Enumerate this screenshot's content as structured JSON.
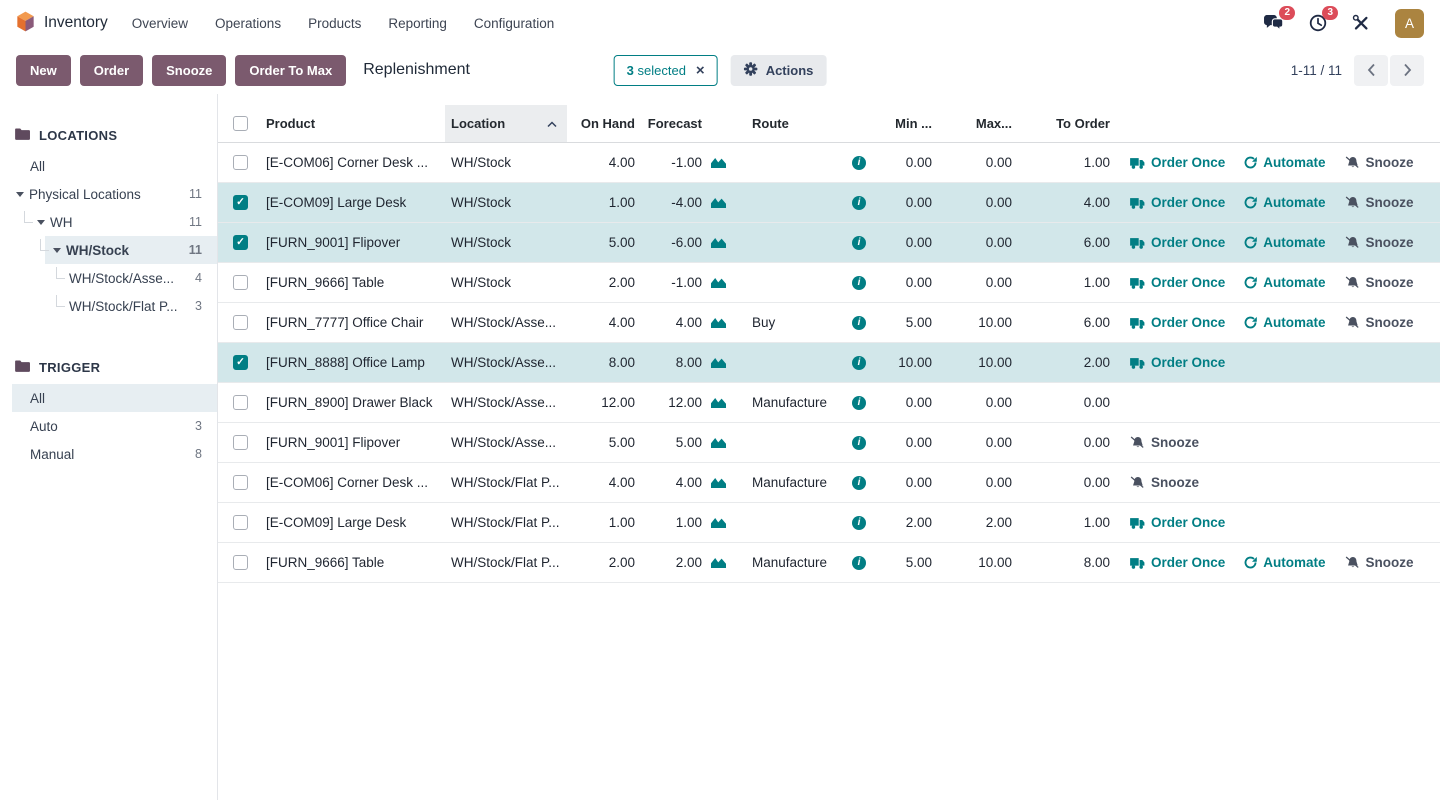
{
  "nav": {
    "brand": "Inventory",
    "items": [
      "Overview",
      "Operations",
      "Products",
      "Reporting",
      "Configuration"
    ],
    "badges": {
      "messages": "2",
      "activities": "3"
    },
    "avatar_letter": "A"
  },
  "control_panel": {
    "buttons": {
      "new": "New",
      "order": "Order",
      "snooze": "Snooze",
      "order_to_max": "Order To Max"
    },
    "breadcrumb": "Replenishment",
    "selection": {
      "count": "3",
      "label": "selected"
    },
    "actions_label": "Actions",
    "pager": {
      "range": "1-11 / 11"
    }
  },
  "sidebar": {
    "locations": {
      "title": "LOCATIONS",
      "items": [
        {
          "label": "All",
          "count": "",
          "depth": 0,
          "caret": false,
          "selected": false
        },
        {
          "label": "Physical Locations",
          "count": "11",
          "depth": 0,
          "caret": true,
          "selected": false
        },
        {
          "label": "WH",
          "count": "11",
          "depth": 1,
          "caret": true,
          "selected": false
        },
        {
          "label": "WH/Stock",
          "count": "11",
          "depth": 2,
          "caret": true,
          "selected": true
        },
        {
          "label": "WH/Stock/Asse...",
          "count": "4",
          "depth": 3,
          "caret": false,
          "selected": false
        },
        {
          "label": "WH/Stock/Flat P...",
          "count": "3",
          "depth": 3,
          "caret": false,
          "selected": false
        }
      ]
    },
    "trigger": {
      "title": "TRIGGER",
      "items": [
        {
          "label": "All",
          "count": "",
          "depth": 0,
          "caret": false,
          "selected": true
        },
        {
          "label": "Auto",
          "count": "3",
          "depth": 0,
          "caret": false,
          "selected": false
        },
        {
          "label": "Manual",
          "count": "8",
          "depth": 0,
          "caret": false,
          "selected": false
        }
      ]
    }
  },
  "table": {
    "headers": {
      "product": "Product",
      "location": "Location",
      "on_hand": "On Hand",
      "forecast": "Forecast",
      "route": "Route",
      "min": "Min ...",
      "max": "Max...",
      "to_order": "To Order"
    },
    "actions": {
      "order_once": "Order Once",
      "automate": "Automate",
      "snooze": "Snooze"
    },
    "rows": [
      {
        "checked": false,
        "product": "[E-COM06] Corner Desk ...",
        "location": "WH/Stock",
        "on_hand": "4.00",
        "forecast": "-1.00",
        "route": "",
        "min": "0.00",
        "max": "0.00",
        "to_order": "1.00",
        "actions": [
          "order_once",
          "automate",
          "snooze"
        ]
      },
      {
        "checked": true,
        "product": "[E-COM09] Large Desk",
        "location": "WH/Stock",
        "on_hand": "1.00",
        "forecast": "-4.00",
        "route": "",
        "min": "0.00",
        "max": "0.00",
        "to_order": "4.00",
        "actions": [
          "order_once",
          "automate",
          "snooze"
        ]
      },
      {
        "checked": true,
        "product": "[FURN_9001] Flipover",
        "location": "WH/Stock",
        "on_hand": "5.00",
        "forecast": "-6.00",
        "route": "",
        "min": "0.00",
        "max": "0.00",
        "to_order": "6.00",
        "actions": [
          "order_once",
          "automate",
          "snooze"
        ]
      },
      {
        "checked": false,
        "product": "[FURN_9666] Table",
        "location": "WH/Stock",
        "on_hand": "2.00",
        "forecast": "-1.00",
        "route": "",
        "min": "0.00",
        "max": "0.00",
        "to_order": "1.00",
        "actions": [
          "order_once",
          "automate",
          "snooze"
        ]
      },
      {
        "checked": false,
        "product": "[FURN_7777] Office Chair",
        "location": "WH/Stock/Asse...",
        "on_hand": "4.00",
        "forecast": "4.00",
        "route": "Buy",
        "min": "5.00",
        "max": "10.00",
        "to_order": "6.00",
        "actions": [
          "order_once",
          "automate",
          "snooze"
        ]
      },
      {
        "checked": true,
        "product": "[FURN_8888] Office Lamp",
        "location": "WH/Stock/Asse...",
        "on_hand": "8.00",
        "forecast": "8.00",
        "route": "",
        "min": "10.00",
        "max": "10.00",
        "to_order": "2.00",
        "actions": [
          "order_once"
        ]
      },
      {
        "checked": false,
        "product": "[FURN_8900] Drawer Black",
        "location": "WH/Stock/Asse...",
        "on_hand": "12.00",
        "forecast": "12.00",
        "route": "Manufacture",
        "min": "0.00",
        "max": "0.00",
        "to_order": "0.00",
        "actions": []
      },
      {
        "checked": false,
        "product": "[FURN_9001] Flipover",
        "location": "WH/Stock/Asse...",
        "on_hand": "5.00",
        "forecast": "5.00",
        "route": "",
        "min": "0.00",
        "max": "0.00",
        "to_order": "0.00",
        "actions": [
          "snooze"
        ]
      },
      {
        "checked": false,
        "product": "[E-COM06] Corner Desk ...",
        "location": "WH/Stock/Flat P...",
        "on_hand": "4.00",
        "forecast": "4.00",
        "route": "Manufacture",
        "min": "0.00",
        "max": "0.00",
        "to_order": "0.00",
        "actions": [
          "snooze"
        ]
      },
      {
        "checked": false,
        "product": "[E-COM09] Large Desk",
        "location": "WH/Stock/Flat P...",
        "on_hand": "1.00",
        "forecast": "1.00",
        "route": "",
        "min": "2.00",
        "max": "2.00",
        "to_order": "1.00",
        "actions": [
          "order_once"
        ]
      },
      {
        "checked": false,
        "product": "[FURN_9666] Table",
        "location": "WH/Stock/Flat P...",
        "on_hand": "2.00",
        "forecast": "2.00",
        "route": "Manufacture",
        "min": "5.00",
        "max": "10.00",
        "to_order": "8.00",
        "actions": [
          "order_once",
          "automate",
          "snooze"
        ]
      }
    ]
  },
  "colors": {
    "accent_teal": "#017e84",
    "button_purple": "#7b5a6e",
    "selected_row": "#d2e7ea",
    "badge_red": "#dc4c59",
    "avatar_gold": "#ab8440",
    "snooze_gray": "#4a5160"
  },
  "icons": {
    "app_logo": "cube",
    "messages": "chat-bubbles",
    "activities": "clock",
    "tools": "wrench-screwdriver",
    "actions": "gear",
    "clear_selection": "x",
    "sort": "chevron-up",
    "forecast": "area-chart",
    "info": "info-circle",
    "order_once": "truck",
    "automate": "refresh",
    "snooze": "bell-slash",
    "section": "folder",
    "pager_prev": "chevron-left",
    "pager_next": "chevron-right"
  }
}
